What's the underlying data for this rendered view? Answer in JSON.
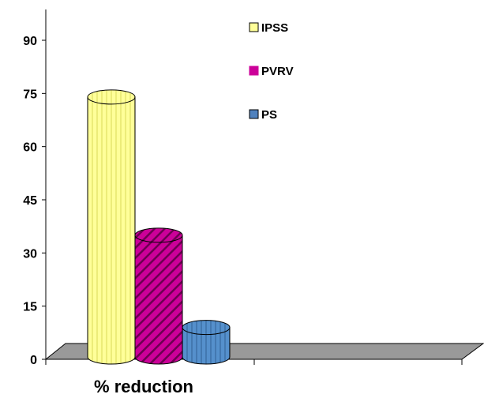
{
  "chart_data": {
    "type": "bar",
    "style": "3d-cylinder",
    "categories": [
      "% reduction"
    ],
    "series": [
      {
        "name": "IPSS",
        "values": [
          74
        ],
        "color": "#ffff99",
        "pattern": "vertical-stripes"
      },
      {
        "name": "PVRV",
        "values": [
          35
        ],
        "color": "#cc0099",
        "pattern": "diagonal-stripes"
      },
      {
        "name": "PS",
        "values": [
          9
        ],
        "color": "#4f81bd",
        "pattern": "vertical-stripes"
      }
    ],
    "yticks": [
      0,
      15,
      30,
      45,
      60,
      75,
      90
    ],
    "ylim": [
      0,
      90
    ],
    "title": "",
    "xlabel": "",
    "ylabel": "",
    "legend_position": "top-right",
    "grid": false,
    "floor_color": "#999999"
  }
}
